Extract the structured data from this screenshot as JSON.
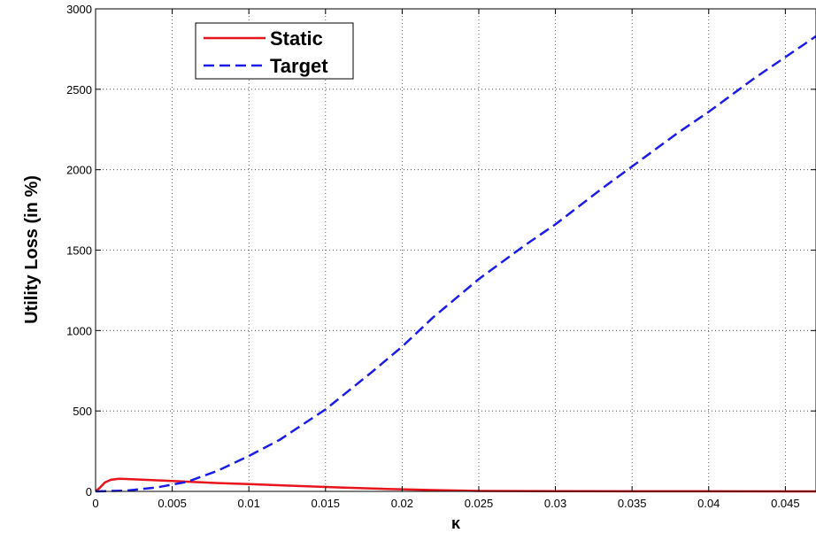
{
  "chart_data": {
    "type": "line",
    "title": "",
    "xlabel": "κ",
    "ylabel": "Utility Loss (in %)",
    "xlim": [
      0,
      0.047
    ],
    "ylim": [
      0,
      3000
    ],
    "xticks": [
      0,
      0.005,
      0.01,
      0.015,
      0.02,
      0.025,
      0.03,
      0.035,
      0.04,
      0.045
    ],
    "xtick_labels": [
      "0",
      "0.005",
      "0.01",
      "0.015",
      "0.02",
      "0.025",
      "0.03",
      "0.035",
      "0.04",
      "0.045"
    ],
    "yticks": [
      0,
      500,
      1000,
      1500,
      2000,
      2500,
      3000
    ],
    "ytick_labels": [
      "0",
      "500",
      "1000",
      "1500",
      "2000",
      "2500",
      "3000"
    ],
    "grid": true,
    "legend_position": "top-left",
    "series": [
      {
        "name": "Static",
        "color": "#e8141c",
        "style": "solid",
        "x": [
          0,
          0.0003,
          0.0006,
          0.001,
          0.0015,
          0.002,
          0.003,
          0.005,
          0.008,
          0.01,
          0.013,
          0.016,
          0.019,
          0.022,
          0.025,
          0.03,
          0.035,
          0.04,
          0.047
        ],
        "y": [
          0,
          25,
          55,
          72,
          78,
          77,
          73,
          65,
          52,
          45,
          34,
          24,
          15,
          8,
          3,
          1,
          0.5,
          0.3,
          0.2
        ]
      },
      {
        "name": "Target",
        "color": "#1c1ce8",
        "style": "dashed",
        "x": [
          0,
          0.002,
          0.004,
          0.006,
          0.008,
          0.01,
          0.012,
          0.015,
          0.018,
          0.02,
          0.022,
          0.025,
          0.028,
          0.03,
          0.033,
          0.035,
          0.038,
          0.04,
          0.043,
          0.045,
          0.047
        ],
        "y": [
          0,
          5,
          25,
          60,
          130,
          220,
          320,
          510,
          740,
          900,
          1080,
          1320,
          1530,
          1660,
          1880,
          2020,
          2230,
          2360,
          2570,
          2700,
          2830
        ]
      }
    ]
  }
}
